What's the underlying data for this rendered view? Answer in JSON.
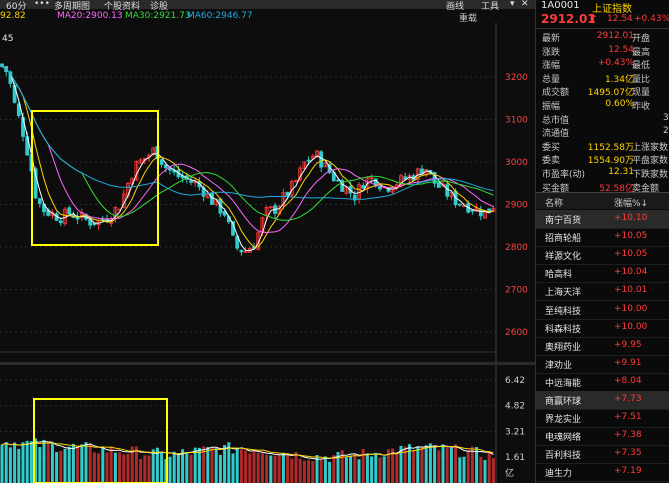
{
  "toolbar": {
    "period": "60分",
    "dots": "•••",
    "cycle": "多周期图",
    "stock_info": "个股资料",
    "diagnose": "诊股",
    "draw": "画线",
    "tools": "工具",
    "close_icon": "close-icon"
  },
  "ma_legend": {
    "ma_left": "92.82",
    "ma20": "MA20:2900.13",
    "ma30": "MA30:2921.73",
    "ma60": "MA60:2946.77",
    "reweight": "重载"
  },
  "chart_labels": {
    "high_marker": "45",
    "price_ticks": [
      "3200",
      "3100",
      "3000",
      "2900",
      "2800",
      "2700",
      "2600"
    ],
    "vol_ticks": [
      "6.42",
      "4.82",
      "3.21",
      "1.61"
    ],
    "vol_unit": "亿"
  },
  "quote": {
    "code": "1A0001",
    "name": "上证指数",
    "price": "2912.01",
    "arrow": "↑",
    "change": "12.54",
    "change_pct": "+0.43%",
    "rows": [
      {
        "k": "最新",
        "v": "2912.01",
        "vc": "red",
        "k2": "开盘"
      },
      {
        "k": "涨跌",
        "v": "12.54",
        "vc": "red",
        "k2": "最高"
      },
      {
        "k": "涨幅",
        "v": "+0.43%",
        "vc": "red",
        "k2": "最低"
      },
      {
        "k": "总量",
        "v": "1.34亿",
        "vc": "yellow",
        "k2": "量比"
      },
      {
        "k": "成交额",
        "v": "1495.07亿",
        "vc": "yellow",
        "k2": "现量"
      },
      {
        "k": "振幅",
        "v": "0.60%",
        "vc": "yellow",
        "k2": "昨收"
      },
      {
        "k": "总市值",
        "v": "",
        "vc": "white",
        "k2": ""
      },
      {
        "k": "流通值",
        "v": "",
        "vc": "white",
        "k2": ""
      },
      {
        "k": "委买",
        "v": "1152.58万",
        "vc": "yellow",
        "k2": "上涨家数"
      },
      {
        "k": "委卖",
        "v": "1554.90万",
        "vc": "yellow",
        "k2": "平盘家数"
      },
      {
        "k": "市盈率(动)",
        "v": "12.31",
        "vc": "yellow",
        "k2": "下跌家数"
      },
      {
        "k": "买金额",
        "v": "52.58亿",
        "vc": "red",
        "k2": "卖金额"
      }
    ],
    "right_edge": [
      "3",
      "2"
    ]
  },
  "list": {
    "header_name": "名称",
    "header_pct": "涨幅%↓",
    "items": [
      {
        "name": "南宁百货",
        "pct": "+10.10"
      },
      {
        "name": "招商轮船",
        "pct": "+10.05"
      },
      {
        "name": "祥源文化",
        "pct": "+10.05"
      },
      {
        "name": "哈高科",
        "pct": "+10.04"
      },
      {
        "name": "上海天洋",
        "pct": "+10.01"
      },
      {
        "name": "至纯科技",
        "pct": "+10.00"
      },
      {
        "name": "科森科技",
        "pct": "+10.00"
      },
      {
        "name": "奥翔药业",
        "pct": "+9.95"
      },
      {
        "name": "津劝业",
        "pct": "+9.91"
      },
      {
        "name": "中远海能",
        "pct": "+8.04"
      },
      {
        "name": "商赢环球",
        "pct": "+7.73"
      },
      {
        "name": "界龙实业",
        "pct": "+7.51"
      },
      {
        "name": "电魂网络",
        "pct": "+7.38"
      },
      {
        "name": "百利科技",
        "pct": "+7.35"
      },
      {
        "name": "迪生力",
        "pct": "+7.19"
      }
    ]
  },
  "colors": {
    "up": "#ff3b3b",
    "down": "#33cccc",
    "ma5": "#ffffff",
    "ma10": "#ffd400",
    "ma20": "#ff66ff",
    "ma30": "#33dd33",
    "ma60": "#22aadd",
    "highlight": "#ffff00"
  }
}
